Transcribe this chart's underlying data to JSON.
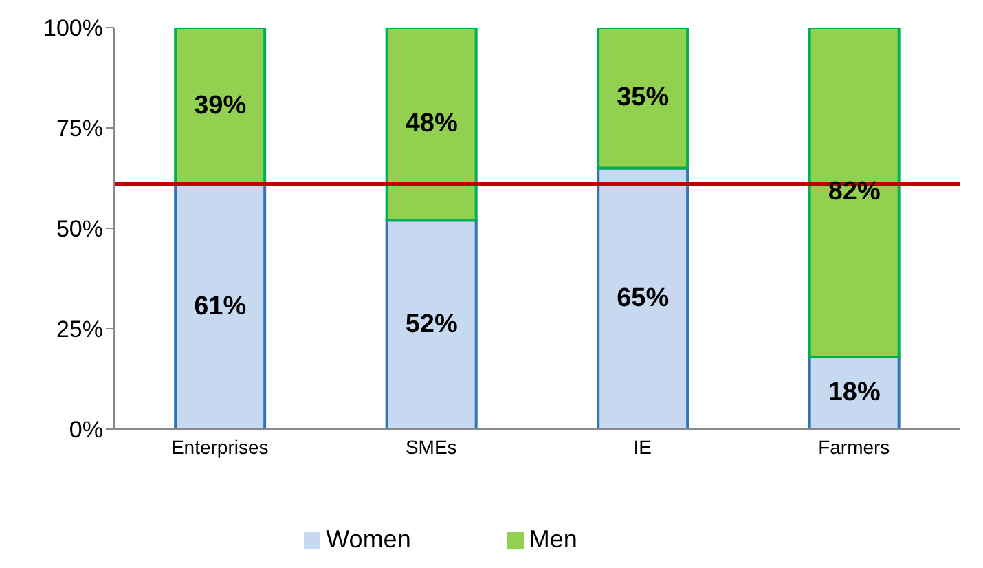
{
  "chart_data": {
    "type": "bar",
    "stacked": true,
    "categories": [
      "Enterprises",
      "SMEs",
      "IE",
      "Farmers"
    ],
    "series": [
      {
        "name": "Women",
        "color": "#c6d9f1",
        "values": [
          61,
          52,
          65,
          18
        ],
        "value_labels": [
          "61%",
          "52%",
          "65%",
          "18%"
        ]
      },
      {
        "name": "Men",
        "color": "#92d050",
        "values": [
          39,
          48,
          35,
          82
        ],
        "value_labels": [
          "39%",
          "48%",
          "35%",
          "82%"
        ]
      }
    ],
    "ylim": [
      0,
      100
    ],
    "yticks": [
      {
        "value": 0,
        "label": "0%"
      },
      {
        "value": 25,
        "label": "25%"
      },
      {
        "value": 50,
        "label": "50%"
      },
      {
        "value": 75,
        "label": "75%"
      },
      {
        "value": 100,
        "label": "100%"
      }
    ],
    "ref_lines": [
      {
        "axis": "y",
        "value": 61,
        "color": "#c00000"
      }
    ],
    "legend": "bottom"
  }
}
